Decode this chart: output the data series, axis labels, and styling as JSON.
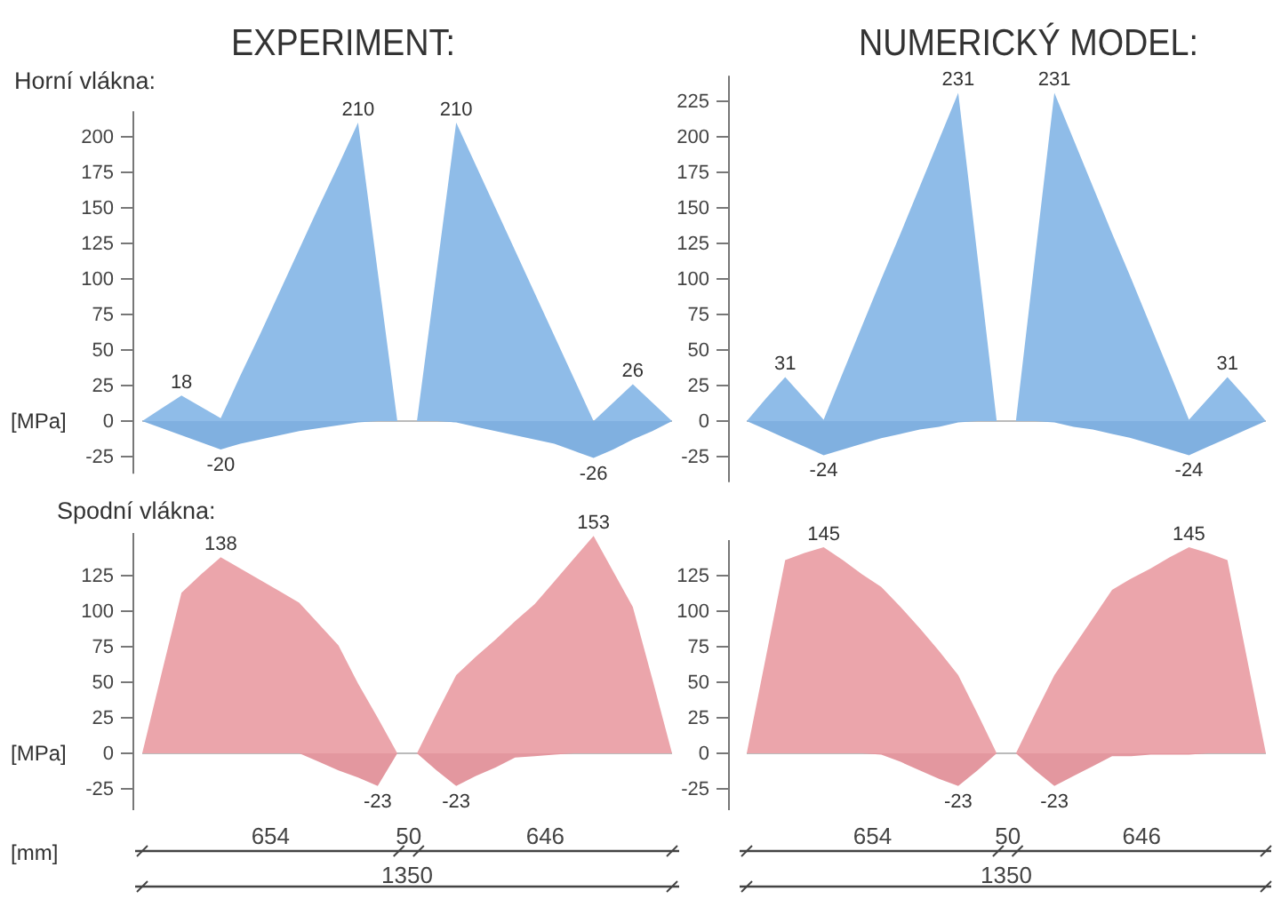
{
  "chart_data": [
    {
      "type": "area",
      "title": "EXPERIMENT:",
      "subtitle": "Horní vlákna:",
      "ylabel": "[MPa]",
      "categories": [
        null,
        null,
        null,
        null,
        null,
        null,
        null,
        null,
        null,
        null,
        null,
        null,
        null,
        null,
        null,
        null,
        null,
        null,
        null,
        null,
        null,
        null,
        null,
        null,
        null,
        null,
        null,
        null
      ],
      "ylim": [
        -37,
        218
      ],
      "yticks": [
        -25,
        0,
        25,
        50,
        75,
        100,
        125,
        150,
        175,
        200
      ],
      "tick_labels": "y",
      "series": [
        {
          "color": "#8fbce8",
          "values": [
            0,
            9,
            18,
            10,
            2,
            32,
            61,
            91,
            121,
            151,
            180,
            210,
            105,
            0,
            0,
            105,
            210,
            180,
            150,
            120,
            90,
            60,
            30,
            0,
            13,
            26,
            13,
            0
          ],
          "value_labels": [
            null,
            null,
            "18",
            null,
            null,
            null,
            null,
            null,
            null,
            null,
            null,
            "210",
            null,
            null,
            null,
            null,
            "210",
            null,
            null,
            null,
            null,
            null,
            null,
            null,
            null,
            "26",
            null,
            null
          ]
        },
        {
          "color": "#80b0e0",
          "values": [
            0,
            -5,
            -10,
            -15,
            -20,
            -16,
            -13,
            -10,
            -7,
            -5,
            -3,
            -1,
            0,
            0,
            0,
            0,
            -1,
            -4,
            -7,
            -10,
            -13,
            -16,
            -21,
            -26,
            -20,
            -13,
            -7,
            0
          ],
          "value_labels": [
            null,
            null,
            null,
            null,
            "-20",
            null,
            null,
            null,
            null,
            null,
            null,
            null,
            null,
            null,
            null,
            null,
            null,
            null,
            null,
            null,
            null,
            null,
            null,
            "-26",
            null,
            null,
            null,
            null
          ]
        }
      ]
    },
    {
      "type": "area",
      "title": "NUMERICKÝ MODEL:",
      "categories": [
        null,
        null,
        null,
        null,
        null,
        null,
        null,
        null,
        null,
        null,
        null,
        null,
        null,
        null,
        null,
        null,
        null,
        null,
        null,
        null,
        null,
        null,
        null,
        null,
        null,
        null,
        null,
        null
      ],
      "ylim": [
        -43,
        243
      ],
      "yticks": [
        -25,
        0,
        25,
        50,
        75,
        100,
        125,
        150,
        175,
        200,
        225
      ],
      "tick_labels": "y",
      "series": [
        {
          "color": "#8fbce8",
          "values": [
            0,
            16,
            31,
            16,
            1,
            34,
            67,
            100,
            132,
            165,
            198,
            231,
            116,
            0,
            0,
            116,
            231,
            198,
            165,
            132,
            100,
            67,
            34,
            1,
            16,
            31,
            16,
            0
          ],
          "value_labels": [
            null,
            null,
            "31",
            null,
            null,
            null,
            null,
            null,
            null,
            null,
            null,
            "231",
            null,
            null,
            null,
            null,
            "231",
            null,
            null,
            null,
            null,
            null,
            null,
            null,
            null,
            "31",
            null,
            null
          ]
        },
        {
          "color": "#80b0e0",
          "values": [
            0,
            -6,
            -12,
            -18,
            -24,
            -20,
            -16,
            -12,
            -9,
            -6,
            -4,
            -1,
            0,
            0,
            0,
            0,
            -1,
            -4,
            -6,
            -9,
            -12,
            -16,
            -20,
            -24,
            -18,
            -12,
            -6,
            0
          ],
          "value_labels": [
            null,
            null,
            null,
            null,
            "-24",
            null,
            null,
            null,
            null,
            null,
            null,
            null,
            null,
            null,
            null,
            null,
            null,
            null,
            null,
            null,
            null,
            null,
            null,
            "-24",
            null,
            null,
            null,
            null
          ]
        }
      ]
    },
    {
      "type": "area",
      "subtitle": "Spodní vlákna:",
      "ylabel": "[MPa]",
      "xlabel": "[mm]",
      "categories": [
        null,
        null,
        null,
        null,
        null,
        null,
        null,
        null,
        null,
        null,
        null,
        null,
        null,
        null,
        null,
        null,
        null,
        null,
        null,
        null,
        null,
        null,
        null,
        null,
        null,
        null,
        null,
        null
      ],
      "ylim": [
        -40,
        155
      ],
      "yticks": [
        -25,
        0,
        25,
        50,
        75,
        100,
        125
      ],
      "tick_labels": "y",
      "annotations": [
        "654",
        "50",
        "646",
        "1350"
      ],
      "series": [
        {
          "color": "#eba5ab",
          "values": [
            0,
            57,
            113,
            126,
            138,
            130,
            122,
            114,
            106,
            91,
            76,
            49,
            25,
            0,
            0,
            28,
            55,
            68,
            80,
            93,
            105,
            121,
            137,
            153,
            128,
            103,
            52,
            0
          ],
          "value_labels": [
            null,
            null,
            null,
            null,
            "138",
            null,
            null,
            null,
            null,
            null,
            null,
            null,
            null,
            null,
            null,
            null,
            null,
            null,
            null,
            null,
            null,
            null,
            null,
            "153",
            null,
            null,
            null,
            null
          ]
        },
        {
          "color": "#e3979f",
          "values": [
            0,
            0,
            0,
            0,
            0,
            0,
            0,
            0,
            0,
            -6,
            -12,
            -17,
            -23,
            0,
            0,
            -12,
            -23,
            -16,
            -10,
            -3,
            -2,
            -1,
            0,
            0,
            0,
            0,
            0,
            0
          ],
          "value_labels": [
            null,
            null,
            null,
            null,
            null,
            null,
            null,
            null,
            null,
            null,
            null,
            null,
            "-23",
            null,
            null,
            null,
            "-23",
            null,
            null,
            null,
            null,
            null,
            null,
            null,
            null,
            null,
            null,
            null
          ]
        }
      ]
    },
    {
      "type": "area",
      "categories": [
        null,
        null,
        null,
        null,
        null,
        null,
        null,
        null,
        null,
        null,
        null,
        null,
        null,
        null,
        null,
        null,
        null,
        null,
        null,
        null,
        null,
        null,
        null,
        null,
        null,
        null,
        null,
        null
      ],
      "ylim": [
        -40,
        150
      ],
      "yticks": [
        -25,
        0,
        25,
        50,
        75,
        100,
        125
      ],
      "tick_labels": "y",
      "annotations": [
        "654",
        "50",
        "646",
        "1350"
      ],
      "series": [
        {
          "color": "#eba5ab",
          "values": [
            0,
            68,
            136,
            141,
            145,
            136,
            126,
            117,
            103,
            88,
            72,
            55,
            28,
            0,
            0,
            28,
            55,
            75,
            95,
            115,
            123,
            130,
            138,
            145,
            141,
            136,
            68,
            0
          ],
          "value_labels": [
            null,
            null,
            null,
            null,
            "145",
            null,
            null,
            null,
            null,
            null,
            null,
            null,
            null,
            null,
            null,
            null,
            null,
            null,
            null,
            null,
            null,
            null,
            null,
            "145",
            null,
            null,
            null,
            null
          ]
        },
        {
          "color": "#e3979f",
          "values": [
            0,
            0,
            0,
            0,
            0,
            0,
            0,
            -1,
            -6,
            -12,
            -18,
            -23,
            -12,
            0,
            0,
            -12,
            -23,
            -16,
            -9,
            -2,
            -2,
            -1,
            -1,
            -1,
            0,
            0,
            0,
            0
          ],
          "value_labels": [
            null,
            null,
            null,
            null,
            null,
            null,
            null,
            null,
            null,
            null,
            null,
            "-23",
            null,
            null,
            null,
            null,
            "-23",
            null,
            null,
            null,
            null,
            null,
            null,
            null,
            null,
            null,
            null,
            null
          ]
        }
      ]
    }
  ]
}
